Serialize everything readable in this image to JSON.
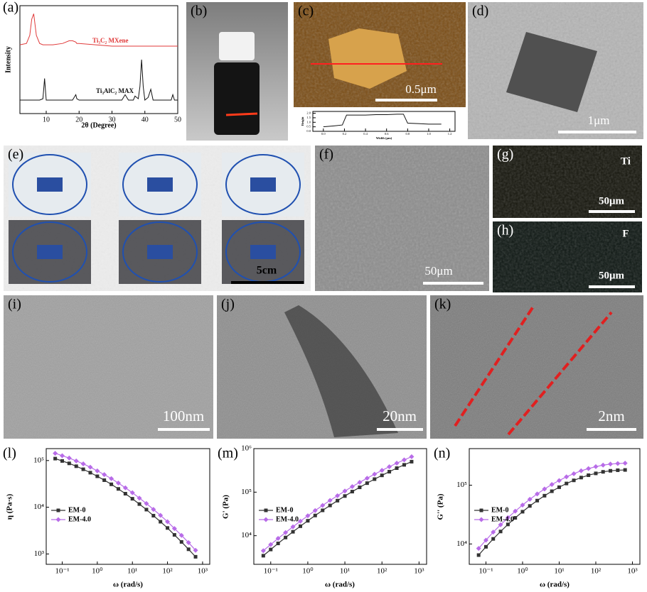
{
  "chart_data": [
    {
      "type": "line",
      "label": "(a)",
      "xlabel": "2θ (Degree)",
      "ylabel": "Intensity",
      "x": [
        2,
        4,
        5,
        5.6,
        6.2,
        7,
        8,
        9,
        9.5,
        10,
        12,
        15,
        17,
        18,
        19,
        19.3,
        20,
        25,
        30,
        33,
        34,
        35,
        36.5,
        37,
        38,
        38.5,
        39,
        39.5,
        40,
        41,
        41.8,
        42.5,
        45,
        48,
        48.5,
        49,
        50
      ],
      "series": [
        {
          "name": "Ti₃C₂ MXene",
          "color": "#e03a3a",
          "values": [
            71,
            72,
            78,
            90,
            94,
            78,
            72,
            71,
            71,
            71,
            71,
            72,
            74,
            74,
            73,
            72,
            72,
            71,
            70,
            70,
            70,
            70,
            70,
            70,
            70,
            70,
            70,
            70,
            70,
            70,
            70,
            70,
            70,
            70,
            70,
            70,
            70
          ]
        },
        {
          "name": "Ti₃AlC₂ MAX",
          "color": "#111111",
          "values": [
            30,
            30,
            30,
            30,
            30,
            30,
            30,
            31,
            46,
            30,
            30,
            30,
            30,
            30,
            34,
            31,
            30,
            30,
            30,
            30,
            34,
            30,
            30,
            33,
            31,
            40,
            60,
            40,
            30,
            32,
            38,
            30,
            30,
            30,
            34,
            30,
            30
          ]
        }
      ],
      "xlim": [
        2,
        50
      ],
      "ylim": [
        20,
        100
      ],
      "xticks": [
        10,
        20,
        30,
        40,
        50
      ]
    },
    {
      "type": "line",
      "xlabel": "Width (μm)",
      "ylabel": "Height",
      "x": [
        0,
        0.1,
        0.18,
        0.22,
        0.3,
        0.4,
        0.5,
        0.6,
        0.7,
        0.76,
        0.8,
        0.9,
        1.0,
        1.12
      ],
      "series": [
        {
          "color": "#111111",
          "values": [
            0.5,
            0.6,
            0.7,
            1.8,
            1.8,
            1.8,
            1.85,
            1.85,
            1.9,
            1.9,
            0.9,
            0.85,
            0.8,
            0.8
          ]
        }
      ],
      "xlim": [
        -0.1,
        1.25
      ],
      "ylim": [
        0,
        2.2
      ],
      "xticks": [
        {
          "value": 0,
          "label": "0.0"
        },
        0.2,
        0.4,
        0.6,
        0.8,
        {
          "value": 1,
          "label": "1.0"
        },
        1.2
      ],
      "yticks": [
        {
          "value": 0,
          "label": "0.0"
        },
        0.5,
        {
          "value": 1,
          "label": "1.0"
        },
        1.5,
        {
          "value": 2,
          "label": "2.0"
        }
      ]
    },
    {
      "type": "line",
      "label": "(l)",
      "xlabel": "ω (rad/s)",
      "ylabel": "η (Pa·s)",
      "xscale": "log",
      "yscale": "log",
      "legend": "center left",
      "x": [
        0.0631,
        0.1,
        0.158,
        0.251,
        0.398,
        0.631,
        1,
        1.58,
        2.51,
        3.98,
        6.31,
        10,
        15.8,
        25.1,
        39.8,
        63.1,
        100,
        158,
        251,
        398,
        631
      ],
      "series": [
        {
          "name": "EM-0",
          "color": "#333333",
          "marker": "square",
          "values": [
            110000,
            98000,
            87000,
            75500,
            65000,
            55000,
            46000,
            38000,
            31000,
            24700,
            19500,
            15200,
            11700,
            8900,
            6600,
            4900,
            3600,
            2560,
            1810,
            1260,
            870
          ]
        },
        {
          "name": "EM-4.0",
          "color": "#b86ce8",
          "marker": "diamond",
          "values": [
            143000,
            127000,
            113000,
            98000,
            85000,
            72000,
            60000,
            50000,
            41000,
            33000,
            26000,
            20500,
            15700,
            12000,
            9000,
            6700,
            4900,
            3500,
            2500,
            1750,
            1200
          ]
        }
      ],
      "xlim": [
        0.035,
        1600
      ],
      "ylim": [
        600,
        180000
      ],
      "xticks": [
        {
          "value": 0.1,
          "label": "10⁻¹"
        },
        {
          "value": 1,
          "label": "10⁰"
        },
        {
          "value": 10,
          "label": "10¹"
        },
        {
          "value": 100,
          "label": "10²"
        },
        {
          "value": 1000,
          "label": "10³"
        }
      ],
      "yticks": [
        {
          "value": 1000,
          "label": "10³"
        },
        {
          "value": 10000,
          "label": "10⁴"
        },
        {
          "value": 100000,
          "label": "10⁵"
        }
      ]
    },
    {
      "type": "line",
      "label": "(m)",
      "xlabel": "ω (rad/s)",
      "ylabel": "G' (Pa)",
      "xscale": "log",
      "yscale": "log",
      "legend": "center left",
      "x": [
        0.0631,
        0.1,
        0.158,
        0.251,
        0.398,
        0.631,
        1,
        1.58,
        2.51,
        3.98,
        6.31,
        10,
        15.8,
        25.1,
        39.8,
        63.1,
        100,
        158,
        251,
        398,
        631
      ],
      "series": [
        {
          "name": "EM-0",
          "color": "#333333",
          "marker": "square",
          "values": [
            3470,
            4820,
            6650,
            9080,
            12300,
            16500,
            22000,
            29100,
            38200,
            49500,
            63800,
            81500,
            103000,
            129000,
            161000,
            199000,
            243000,
            295000,
            356000,
            424000,
            501000
          ]
        },
        {
          "name": "EM-4.0",
          "color": "#b86ce8",
          "marker": "diamond",
          "values": [
            4510,
            6270,
            8650,
            11800,
            16000,
            21500,
            28600,
            37800,
            49700,
            64400,
            82900,
            106000,
            134000,
            168000,
            209000,
            259000,
            316000,
            384000,
            463000,
            551000,
            651000
          ]
        }
      ],
      "xlim": [
        0.035,
        1600
      ],
      "ylim": [
        2200,
        1000000
      ],
      "xticks": [
        {
          "value": 0.1,
          "label": "10⁻¹"
        },
        {
          "value": 1,
          "label": "10⁰"
        },
        {
          "value": 10,
          "label": "10¹"
        },
        {
          "value": 100,
          "label": "10²"
        },
        {
          "value": 1000,
          "label": "10³"
        }
      ],
      "yticks": [
        {
          "value": 10000,
          "label": "10⁴"
        },
        {
          "value": 100000,
          "label": "10⁵"
        },
        {
          "value": 1000000,
          "label": "10⁶"
        }
      ]
    },
    {
      "type": "line",
      "label": "(n)",
      "xlabel": "ω (rad/s)",
      "ylabel": "G'' (Pa)",
      "xscale": "log",
      "yscale": "log",
      "legend": "center left",
      "x": [
        0.0631,
        0.1,
        0.158,
        0.251,
        0.398,
        0.631,
        1,
        1.58,
        2.51,
        3.98,
        6.31,
        10,
        15.8,
        25.1,
        39.8,
        63.1,
        100,
        158,
        251,
        398,
        631
      ],
      "series": [
        {
          "name": "EM-0",
          "color": "#333333",
          "marker": "square",
          "values": [
            6460,
            8940,
            12200,
            16300,
            21500,
            27800,
            35400,
            44400,
            54700,
            66300,
            79000,
            92500,
            107000,
            121000,
            135000,
            148000,
            159000,
            169000,
            176000,
            180000,
            182000
          ]
        },
        {
          "name": "EM-4.0",
          "color": "#b86ce8",
          "marker": "diamond",
          "values": [
            8400,
            11600,
            15900,
            21200,
            28000,
            36100,
            46000,
            57700,
            71100,
            86200,
            103000,
            120000,
            139000,
            157000,
            176000,
            192000,
            207000,
            220000,
            229000,
            234000,
            237000
          ]
        }
      ],
      "xlim": [
        0.035,
        1600
      ],
      "ylim": [
        4500,
        420000
      ],
      "xticks": [
        {
          "value": 0.1,
          "label": "10⁻¹"
        },
        {
          "value": 1,
          "label": "10⁰"
        },
        {
          "value": 10,
          "label": "10¹"
        },
        {
          "value": 100,
          "label": "10²"
        },
        {
          "value": 1000,
          "label": "10³"
        }
      ],
      "yticks": [
        {
          "value": 10000,
          "label": "10⁴"
        },
        {
          "value": 100000,
          "label": "10⁵"
        }
      ]
    }
  ],
  "panels": [
    {
      "label": "(b)"
    },
    {
      "label": "(c)",
      "scale_bar": "0.5μm"
    },
    {
      "label": "(d)",
      "scale_bar": "1μm"
    },
    {
      "label": "(e)",
      "scale_bar": "5cm"
    },
    {
      "label": "(f)",
      "scale_bar": "50μm"
    },
    {
      "label": "(g)",
      "element": "Ti",
      "scale_bar": "50μm"
    },
    {
      "label": "(h)",
      "element": "F",
      "scale_bar": "50μm"
    },
    {
      "label": "(i)",
      "scale_bar": "100nm"
    },
    {
      "label": "(j)",
      "scale_bar": "20nm"
    },
    {
      "label": "(k)",
      "scale_bar": "2nm"
    }
  ]
}
